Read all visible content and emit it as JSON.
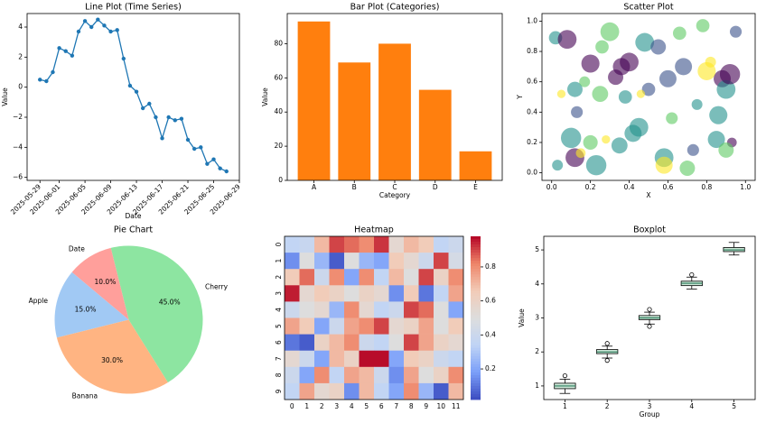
{
  "chart_data": [
    {
      "type": "line",
      "title": "Line Plot (Time Series)",
      "xlabel": "Date",
      "ylabel": "Value",
      "color": "#1f77b4",
      "x": [
        "2025-05-29",
        "2025-05-30",
        "2025-05-31",
        "2025-06-01",
        "2025-06-02",
        "2025-06-03",
        "2025-06-04",
        "2025-06-05",
        "2025-06-06",
        "2025-06-07",
        "2025-06-08",
        "2025-06-09",
        "2025-06-10",
        "2025-06-11",
        "2025-06-12",
        "2025-06-13",
        "2025-06-14",
        "2025-06-15",
        "2025-06-16",
        "2025-06-17",
        "2025-06-18",
        "2025-06-19",
        "2025-06-20",
        "2025-06-21",
        "2025-06-22",
        "2025-06-23",
        "2025-06-24",
        "2025-06-25",
        "2025-06-26",
        "2025-06-27"
      ],
      "values": [
        0.5,
        0.4,
        1.0,
        2.6,
        2.4,
        2.1,
        3.7,
        4.4,
        4.0,
        4.5,
        4.1,
        3.7,
        3.8,
        1.9,
        0.1,
        -0.3,
        -1.4,
        -1.1,
        -2.0,
        -3.4,
        -2.0,
        -2.2,
        -2.1,
        -3.5,
        -4.1,
        -4.0,
        -5.1,
        -4.8,
        -5.4,
        -5.6
      ],
      "xlim": [
        "2025-05-27",
        "2025-06-29"
      ],
      "xticks": [
        "2025-05-29",
        "2025-06-01",
        "2025-06-05",
        "2025-06-09",
        "2025-06-13",
        "2025-06-17",
        "2025-06-21",
        "2025-06-25",
        "2025-06-29"
      ],
      "ylim": [
        -6.2,
        4.9
      ],
      "yticks": [
        {
          "value": -6,
          "label": "−6"
        },
        {
          "value": -4,
          "label": "−4"
        },
        {
          "value": -2,
          "label": "−2"
        },
        0,
        2,
        4
      ]
    },
    {
      "type": "bar",
      "title": "Bar Plot (Categories)",
      "xlabel": "Category",
      "ylabel": "Value",
      "color": "#ff7f0e",
      "categories": [
        "A",
        "B",
        "C",
        "D",
        "E"
      ],
      "values": [
        93,
        69,
        80,
        53,
        17
      ],
      "ylim": [
        0,
        97.65
      ],
      "yticks": [
        0,
        20,
        40,
        60,
        80
      ]
    },
    {
      "type": "scatter",
      "title": "Scatter Plot",
      "xlabel": "X",
      "ylabel": "Y",
      "x": [
        0.02,
        0.08,
        0.05,
        0.12,
        0.13,
        0.17,
        0.1,
        0.12,
        0.15,
        0.2,
        0.23,
        0.25,
        0.28,
        0.2,
        0.26,
        0.3,
        0.33,
        0.36,
        0.38,
        0.35,
        0.42,
        0.45,
        0.48,
        0.5,
        0.55,
        0.58,
        0.6,
        0.62,
        0.66,
        0.68,
        0.7,
        0.73,
        0.75,
        0.78,
        0.8,
        0.82,
        0.85,
        0.86,
        0.88,
        0.9,
        0.92,
        0.95,
        0.93,
        0.9,
        0.58,
        0.4,
        0.46,
        0.03
      ],
      "values": [
        0.89,
        0.88,
        0.52,
        0.55,
        0.4,
        0.6,
        0.23,
        0.1,
        0.13,
        0.2,
        0.05,
        0.52,
        0.22,
        0.72,
        0.83,
        0.93,
        0.63,
        0.7,
        0.5,
        0.18,
        0.26,
        0.3,
        0.86,
        0.55,
        0.83,
        0.1,
        0.62,
        0.36,
        0.92,
        0.7,
        0.03,
        0.15,
        0.45,
        0.97,
        0.67,
        0.73,
        0.22,
        0.38,
        0.62,
        0.55,
        0.65,
        0.93,
        0.2,
        0.15,
        0.05,
        0.73,
        0.52,
        0.05
      ],
      "sizes": [
        150,
        300,
        60,
        200,
        120,
        100,
        350,
        300,
        80,
        180,
        350,
        220,
        60,
        280,
        150,
        300,
        200,
        250,
        150,
        220,
        250,
        300,
        300,
        150,
        200,
        300,
        250,
        120,
        150,
        250,
        200,
        120,
        100,
        150,
        280,
        100,
        250,
        280,
        250,
        300,
        350,
        120,
        80,
        200,
        250,
        300,
        60,
        100
      ],
      "colors": [
        "#21918c",
        "#440154",
        "#fde725",
        "#21918c",
        "#3b528b",
        "#5ec962",
        "#21918c",
        "#440154",
        "#fde725",
        "#5ec962",
        "#21918c",
        "#5ec962",
        "#fde725",
        "#440154",
        "#5ec962",
        "#5ec962",
        "#440154",
        "#440154",
        "#21918c",
        "#21918c",
        "#21918c",
        "#21918c",
        "#21918c",
        "#3b528b",
        "#3b528b",
        "#21918c",
        "#3b528b",
        "#5ec962",
        "#5ec962",
        "#3b528b",
        "#5ec962",
        "#3b528b",
        "#21918c",
        "#5ec962",
        "#fde725",
        "#fde725",
        "#21918c",
        "#21918c",
        "#440154",
        "#21918c",
        "#440154",
        "#3b528b",
        "#440154",
        "#5ec962",
        "#fde725",
        "#440154",
        "#fde725",
        "#21918c"
      ],
      "xlim": [
        -0.05,
        1.05
      ],
      "ylim": [
        -0.05,
        1.05
      ],
      "xticks": [
        {
          "value": 0,
          "label": "0.0"
        },
        0.2,
        0.4,
        0.6,
        0.8,
        {
          "value": 1,
          "label": "1.0"
        }
      ],
      "yticks": [
        {
          "value": 0,
          "label": "0.0"
        },
        0.2,
        0.4,
        0.6,
        0.8,
        {
          "value": 1,
          "label": "1.0"
        }
      ]
    },
    {
      "type": "pie",
      "title": "Pie Chart",
      "startangle": 140,
      "categories": [
        "Apple",
        "Banana",
        "Cherry",
        "Date"
      ],
      "values": [
        15,
        30,
        45,
        10
      ],
      "value_labels": [
        "15.0%",
        "30.0%",
        "45.0%",
        "10.0%"
      ],
      "colors": [
        "#a1c9f4",
        "#ffb482",
        "#8de5a1",
        "#ff9f9b"
      ]
    },
    {
      "type": "heatmap",
      "title": "Heatmap",
      "xcategories": [
        "0",
        "1",
        "2",
        "3",
        "4",
        "5",
        "6",
        "7",
        "8",
        "9",
        "10",
        "11"
      ],
      "ycategories": [
        "0",
        "1",
        "2",
        "3",
        "4",
        "5",
        "6",
        "7",
        "8",
        "9"
      ],
      "values": [
        [
          0.35,
          0.38,
          0.7,
          0.9,
          0.85,
          0.8,
          0.92,
          0.55,
          0.7,
          0.65,
          0.35,
          0.4
        ],
        [
          0.15,
          0.5,
          0.25,
          0.05,
          0.5,
          0.25,
          0.2,
          0.65,
          0.55,
          0.4,
          0.9,
          0.45
        ],
        [
          0.65,
          0.85,
          0.4,
          0.8,
          0.2,
          0.8,
          0.35,
          0.7,
          0.5,
          0.9,
          0.6,
          0.8
        ],
        [
          0.95,
          0.55,
          0.65,
          0.6,
          0.5,
          0.6,
          0.55,
          0.15,
          0.65,
          0.1,
          0.35,
          0.75
        ],
        [
          0.4,
          0.5,
          0.55,
          0.25,
          0.8,
          0.55,
          0.35,
          0.4,
          0.9,
          0.85,
          0.5,
          0.2
        ],
        [
          0.75,
          0.65,
          0.2,
          0.4,
          0.75,
          0.8,
          0.9,
          0.55,
          0.6,
          0.75,
          0.5,
          0.65
        ],
        [
          0.1,
          0.05,
          0.6,
          0.7,
          0.8,
          0.4,
          0.35,
          0.5,
          0.9,
          0.75,
          0.6,
          0.55
        ],
        [
          0.55,
          0.4,
          0.2,
          0.7,
          0.6,
          0.97,
          0.97,
          0.2,
          0.65,
          0.6,
          0.4,
          0.35
        ],
        [
          0.4,
          0.2,
          0.8,
          0.35,
          0.75,
          0.7,
          0.4,
          0.15,
          0.75,
          0.5,
          0.6,
          0.8
        ],
        [
          0.35,
          0.75,
          0.55,
          0.6,
          0.15,
          0.7,
          0.35,
          0.2,
          0.8,
          0.25,
          0.05,
          0.7
        ]
      ],
      "vlim": [
        0.02,
        0.98
      ],
      "colorbar_ticks": [
        0.2,
        0.4,
        0.6,
        0.8
      ],
      "colormap": [
        "#3b4cc0",
        "#7b9ff9",
        "#c0d4f5",
        "#dddddd",
        "#f2cbb7",
        "#ee8468",
        "#b40426"
      ]
    },
    {
      "type": "box",
      "title": "Boxplot",
      "xlabel": "Group",
      "ylabel": "Value",
      "color": "#cde8d8",
      "median_color": "#2a7a5a",
      "categories": [
        "1",
        "2",
        "3",
        "4",
        "5"
      ],
      "boxes": [
        {
          "whislo": 0.78,
          "q1": 0.92,
          "med": 1.0,
          "q3": 1.08,
          "whishi": 1.2,
          "fliers": [
            1.3
          ]
        },
        {
          "whislo": 1.82,
          "q1": 1.95,
          "med": 2.0,
          "q3": 2.07,
          "whishi": 2.17,
          "fliers": [
            2.25,
            1.75
          ]
        },
        {
          "whislo": 2.82,
          "q1": 2.95,
          "med": 3.0,
          "q3": 3.07,
          "whishi": 3.17,
          "fliers": [
            3.25,
            2.75
          ]
        },
        {
          "whislo": 3.85,
          "q1": 3.95,
          "med": 4.02,
          "q3": 4.08,
          "whishi": 4.2,
          "fliers": [
            4.27
          ]
        },
        {
          "whislo": 4.85,
          "q1": 4.95,
          "med": 5.0,
          "q3": 5.07,
          "whishi": 5.22,
          "fliers": []
        }
      ],
      "ylim": [
        0.6,
        5.4
      ],
      "yticks": [
        1,
        2,
        3,
        4,
        5
      ]
    }
  ]
}
